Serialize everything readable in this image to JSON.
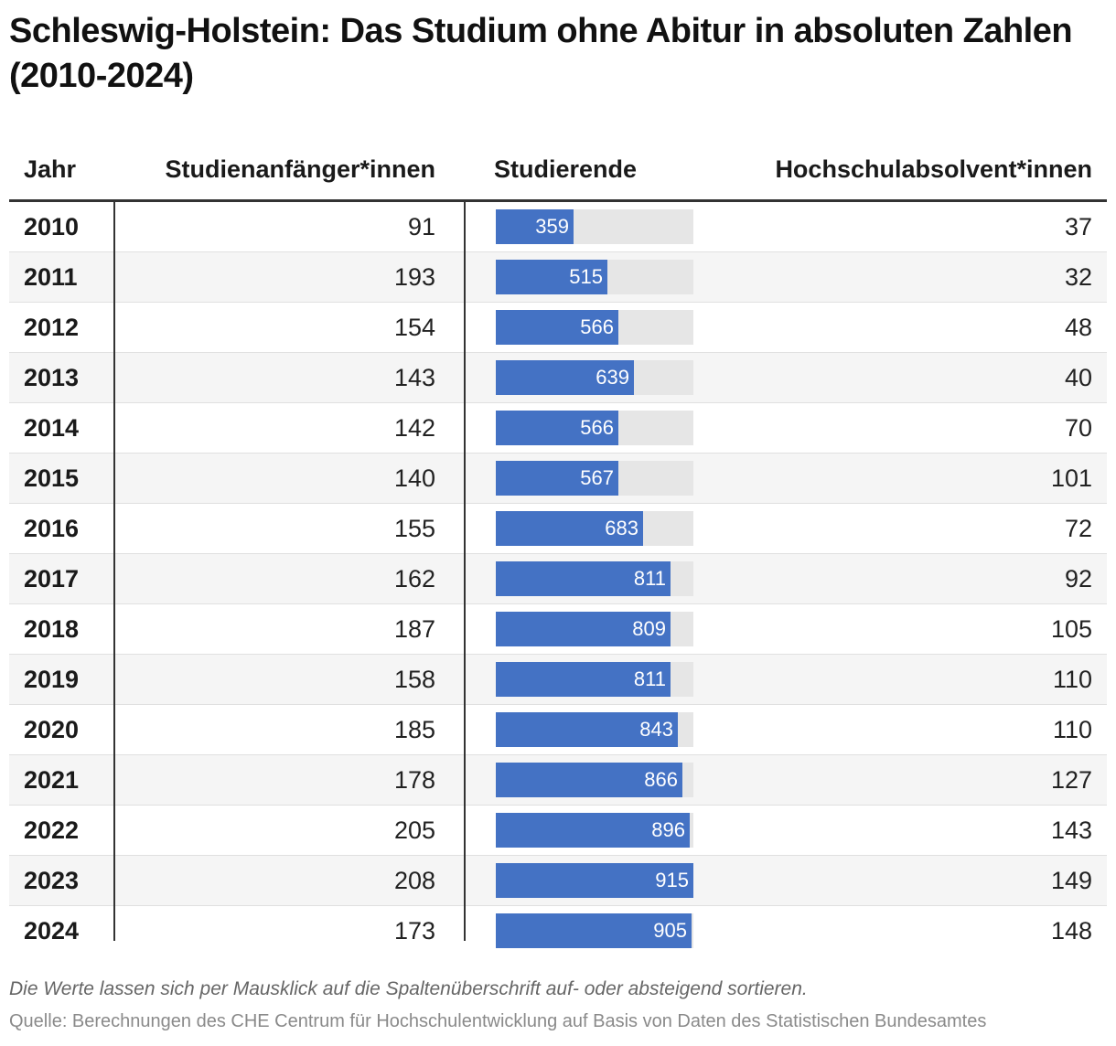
{
  "title": "Schleswig-Holstein: Das Studium ohne Abitur in absoluten Zahlen (2010-2024)",
  "columns": {
    "year": "Jahr",
    "new_students": "Studienanfänger*innen",
    "students": "Studierende",
    "graduates": "Hochschulabsolvent*innen"
  },
  "colors": {
    "bar": "#4472c4",
    "track": "#e6e6e6"
  },
  "chart_data": {
    "type": "table",
    "title": "Schleswig-Holstein: Das Studium ohne Abitur in absoluten Zahlen (2010-2024)",
    "bar_column": "Studierende",
    "bar_max": 915,
    "rows": [
      {
        "year": "2010",
        "new_students": 91,
        "students": 359,
        "graduates": 37
      },
      {
        "year": "2011",
        "new_students": 193,
        "students": 515,
        "graduates": 32
      },
      {
        "year": "2012",
        "new_students": 154,
        "students": 566,
        "graduates": 48
      },
      {
        "year": "2013",
        "new_students": 143,
        "students": 639,
        "graduates": 40
      },
      {
        "year": "2014",
        "new_students": 142,
        "students": 566,
        "graduates": 70
      },
      {
        "year": "2015",
        "new_students": 140,
        "students": 567,
        "graduates": 101
      },
      {
        "year": "2016",
        "new_students": 155,
        "students": 683,
        "graduates": 72
      },
      {
        "year": "2017",
        "new_students": 162,
        "students": 811,
        "graduates": 92
      },
      {
        "year": "2018",
        "new_students": 187,
        "students": 809,
        "graduates": 105
      },
      {
        "year": "2019",
        "new_students": 158,
        "students": 811,
        "graduates": 110
      },
      {
        "year": "2020",
        "new_students": 185,
        "students": 843,
        "graduates": 110
      },
      {
        "year": "2021",
        "new_students": 178,
        "students": 866,
        "graduates": 127
      },
      {
        "year": "2022",
        "new_students": 205,
        "students": 896,
        "graduates": 143
      },
      {
        "year": "2023",
        "new_students": 208,
        "students": 915,
        "graduates": 149
      },
      {
        "year": "2024",
        "new_students": 173,
        "students": 905,
        "graduates": 148
      }
    ]
  },
  "footer": {
    "note": "Die Werte lassen sich per Mausklick auf die Spaltenüberschrift auf- oder absteigend sortieren.",
    "source": "Quelle: Berechnungen des CHE Centrum für Hochschulentwicklung auf Basis von Daten des Statistischen Bundesamtes"
  }
}
